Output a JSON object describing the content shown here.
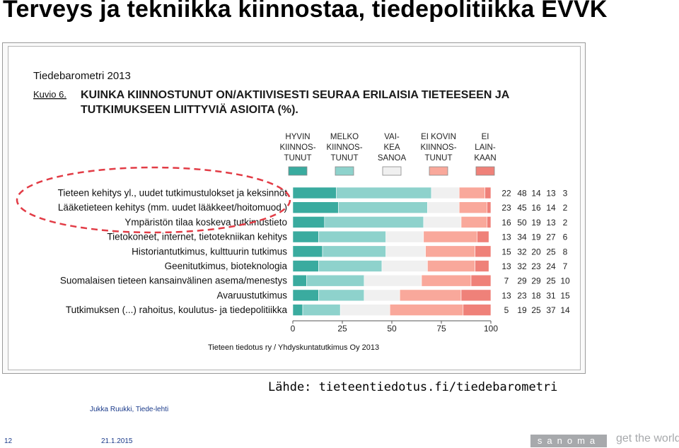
{
  "slide": {
    "title": "Terveys ja tekniikka kiinnostaa, tiedepolitiikka EVVK",
    "source": "Lähde: tieteentiedotus.fi/tiedebarometri",
    "author": "Jukka Ruukki, Tiede-lehti",
    "page_number": "12",
    "date": "21.1.2015",
    "brand": "sanoma",
    "tagline": "get the world"
  },
  "colors": {
    "very": "#3aab9f",
    "fairly": "#8ed2cc",
    "hard": "#f0f0f0",
    "not_very": "#f9a89b",
    "not_at_all": "#ef8179",
    "highlight": "#e23c46"
  },
  "chart_data": {
    "type": "bar",
    "orientation": "horizontal",
    "stacked": true,
    "title": "Tiedebarometri 2013",
    "figure_label": "Kuvio 6.",
    "subtitle": "KUINKA KIINNOSTUNUT ON/AKTIIVISESTI SEURAA ERILAISIA TIETEESEEN JA TUTKIMUKSEEN LIITTYVIÄ ASIOITA (%).",
    "footer": "Tieteen tiedotus ry / Yhdyskuntatutkimus Oy 2013",
    "xlim": [
      0,
      100
    ],
    "x_ticks": [
      "0",
      "25",
      "50",
      "75",
      "100"
    ],
    "legend_position": "top",
    "categories": [
      "Tieteen kehitys yl., uudet tutkimustulokset ja keksinnöt",
      "Lääketieteen kehitys (mm. uudet lääkkeet/hoitomuod.)",
      "Ympäristön tilaa koskeva tutkimustieto",
      "Tietokoneet, internet, tietotekniikan kehitys",
      "Historiantutkimus, kulttuurin tutkimus",
      "Geenitutkimus, bioteknologia",
      "Suomalaisen tieteen kansainvälinen asema/menestys",
      "Avaruustutkimus",
      "Tutkimuksen (...) rahoitus, koulutus- ja tiedepolitiikka"
    ],
    "series": [
      {
        "name": "HYVIN KIINNOSTUNUT",
        "legend_lines": [
          "HYVIN",
          "KIINNOS-",
          "TUNUT"
        ],
        "color_key": "very",
        "values": [
          22,
          23,
          16,
          13,
          15,
          13,
          7,
          13,
          5
        ]
      },
      {
        "name": "MELKO KIINNOSTUNUT",
        "legend_lines": [
          "MELKO",
          "KIINNOS-",
          "TUNUT"
        ],
        "color_key": "fairly",
        "values": [
          48,
          45,
          50,
          34,
          32,
          32,
          29,
          23,
          19
        ]
      },
      {
        "name": "VAIKEA SANOA",
        "legend_lines": [
          "VAI-",
          "KEA",
          "SANOA"
        ],
        "color_key": "hard",
        "values": [
          14,
          16,
          19,
          19,
          20,
          23,
          29,
          18,
          25
        ]
      },
      {
        "name": "EI KOVIN KIINNOSTUNUT",
        "legend_lines": [
          "EI KOVIN",
          "KIINNOS-",
          "TUNUT"
        ],
        "color_key": "not_very",
        "values": [
          13,
          14,
          13,
          27,
          25,
          24,
          25,
          31,
          37
        ]
      },
      {
        "name": "EI LAINKAAN",
        "legend_lines": [
          "EI",
          "LAIN-",
          "KAAN"
        ],
        "color_key": "not_at_all",
        "values": [
          3,
          2,
          2,
          6,
          8,
          7,
          10,
          15,
          14
        ]
      }
    ],
    "highlighted_categories": [
      0,
      1,
      2
    ]
  }
}
